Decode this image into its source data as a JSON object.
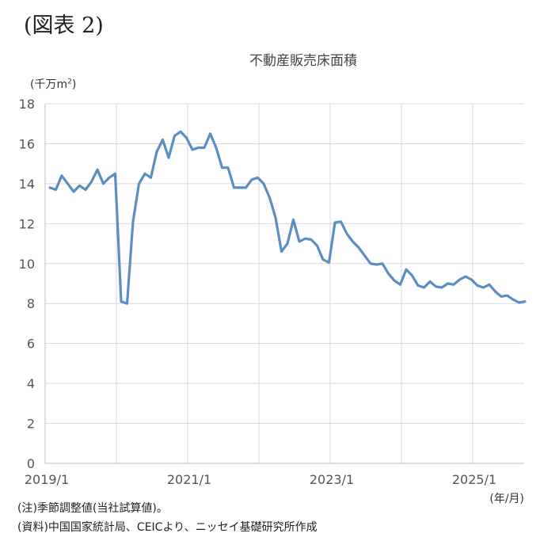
{
  "figure_label": "(図表 2)",
  "period_label": "(年/月)",
  "notes": {
    "note1": "(注)季節調整値(当社試算値)。",
    "note2": "(資料)中国国家統計局、CEICより、ニッセイ基礎研究所作成"
  },
  "chart_data": {
    "type": "line",
    "title": "不動産販売床面積",
    "unit": "(千万m",
    "unit_sup": "2",
    "unit_close": ")",
    "xlabel": "",
    "ylabel": "",
    "ylim": [
      0,
      18
    ],
    "yticks": [
      0,
      2,
      4,
      6,
      8,
      10,
      12,
      14,
      16,
      18
    ],
    "xtick_labels": [
      "2019/1",
      "2021/1",
      "2023/1",
      "2025/1"
    ],
    "x_start": "2019-01",
    "grid": true,
    "color": "#5b8ec2",
    "series": [
      {
        "name": "",
        "values": [
          13.8,
          13.7,
          14.4,
          14.0,
          13.6,
          13.9,
          13.7,
          14.1,
          14.7,
          14.0,
          14.3,
          14.5,
          8.1,
          8.0,
          12.1,
          14.0,
          14.5,
          14.3,
          15.6,
          16.2,
          15.3,
          16.4,
          16.6,
          16.3,
          15.7,
          15.8,
          15.8,
          16.5,
          15.8,
          14.8,
          14.8,
          13.8,
          13.8,
          13.8,
          14.2,
          14.3,
          14.0,
          13.3,
          12.3,
          10.6,
          11.0,
          12.2,
          11.1,
          11.25,
          11.2,
          10.9,
          10.2,
          10.05,
          12.05,
          12.1,
          11.5,
          11.1,
          10.8,
          10.4,
          10.0,
          9.95,
          10.0,
          9.5,
          9.15,
          8.95,
          9.7,
          9.4,
          8.9,
          8.8,
          9.1,
          8.85,
          8.8,
          9.0,
          8.95,
          9.2,
          9.35,
          9.2,
          8.9,
          8.8,
          8.95,
          8.6,
          8.35,
          8.4,
          8.2,
          8.05,
          8.1
        ]
      }
    ]
  }
}
